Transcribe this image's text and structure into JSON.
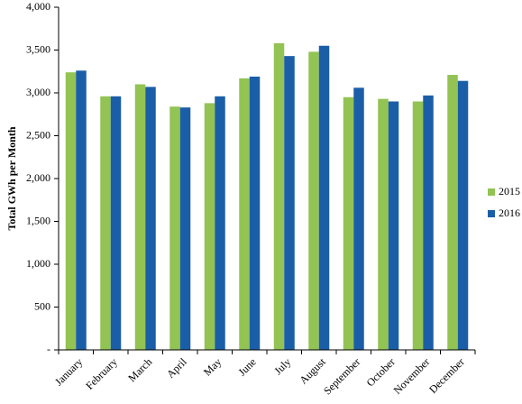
{
  "chart_data": {
    "type": "bar",
    "y_label": "Total GWh per Month",
    "categories": [
      "January",
      "February",
      "March",
      "April",
      "May",
      "June",
      "July",
      "August",
      "September",
      "October",
      "November",
      "December"
    ],
    "series": [
      {
        "name": "2015",
        "color": "#92c353",
        "values": [
          3240,
          2960,
          3100,
          2840,
          2880,
          3170,
          3580,
          3480,
          2950,
          2930,
          2900,
          3210
        ]
      },
      {
        "name": "2016",
        "color": "#1b5ea8",
        "values": [
          3260,
          2960,
          3070,
          2830,
          2960,
          3190,
          3430,
          3550,
          3060,
          2900,
          2970,
          3140
        ]
      }
    ],
    "ylim": [
      0,
      4000
    ],
    "yticks": [
      {
        "value": 0,
        "label": "-"
      },
      500,
      {
        "value": 1000,
        "label": "1,000"
      },
      {
        "value": 1500,
        "label": "1,500"
      },
      {
        "value": 2000,
        "label": "2,000"
      },
      {
        "value": 2500,
        "label": "2,500"
      },
      {
        "value": 3000,
        "label": "3,000"
      },
      {
        "value": 3500,
        "label": "3,500"
      },
      {
        "value": 4000,
        "label": "4,000"
      }
    ],
    "grid": false,
    "legend": "right"
  }
}
